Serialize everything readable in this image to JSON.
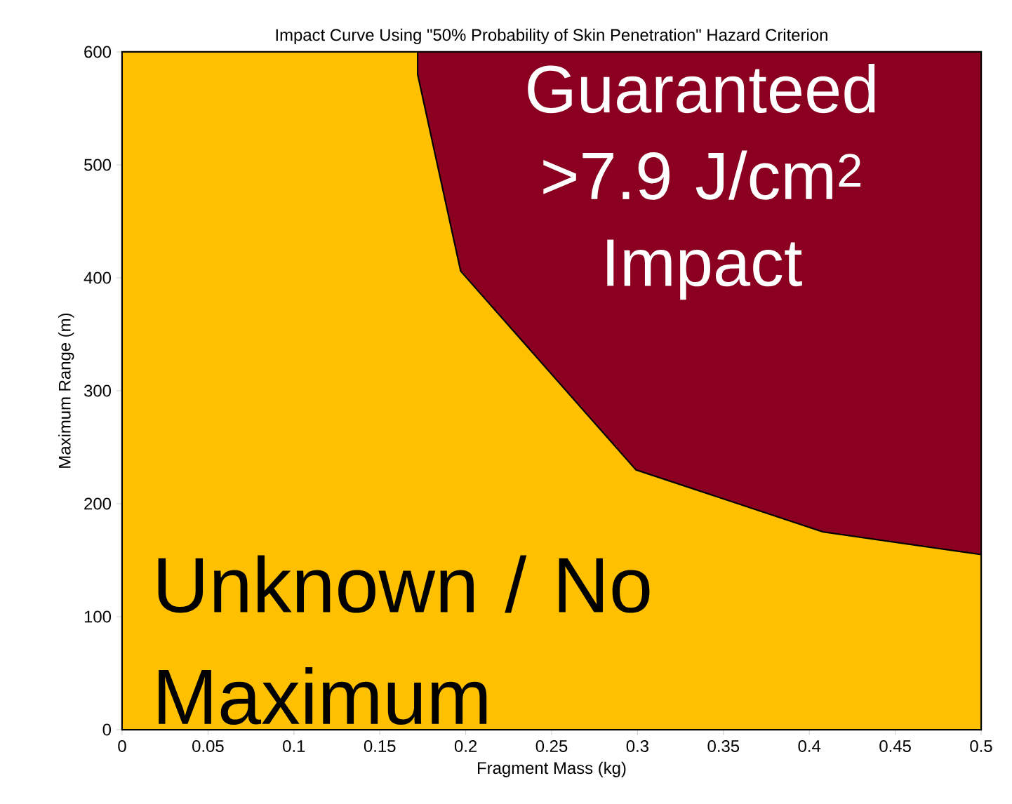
{
  "chart_data": {
    "type": "area",
    "title": "Impact Curve Using \"50% Probability of Skin Penetration\" Hazard Criterion",
    "xlabel": "Fragment Mass (kg)",
    "ylabel": "Maximum Range (m)",
    "x": [
      0,
      0.172,
      0.172,
      0.197,
      0.299,
      0.408,
      0.5
    ],
    "stacked": true,
    "series": [
      {
        "name": "Unknown / No Maximum",
        "color": "#ffc000",
        "values": [
          600,
          600,
          580,
          406,
          230,
          175,
          155
        ]
      },
      {
        "name": "Guaranteed >7.9 J/cm$^{2}$ Impact",
        "color": "#8b0020",
        "values": [
          0,
          0,
          20,
          194,
          370,
          425,
          445
        ]
      }
    ],
    "xlim": [
      0,
      0.5
    ],
    "ylim": [
      0,
      600
    ],
    "xticks": [
      0,
      0.05,
      0.1,
      0.15,
      0.2,
      0.25,
      0.3,
      0.35,
      0.4,
      0.45,
      0.5
    ],
    "yticks": [
      0,
      100,
      200,
      300,
      400,
      500,
      600
    ],
    "legend": false
  }
}
